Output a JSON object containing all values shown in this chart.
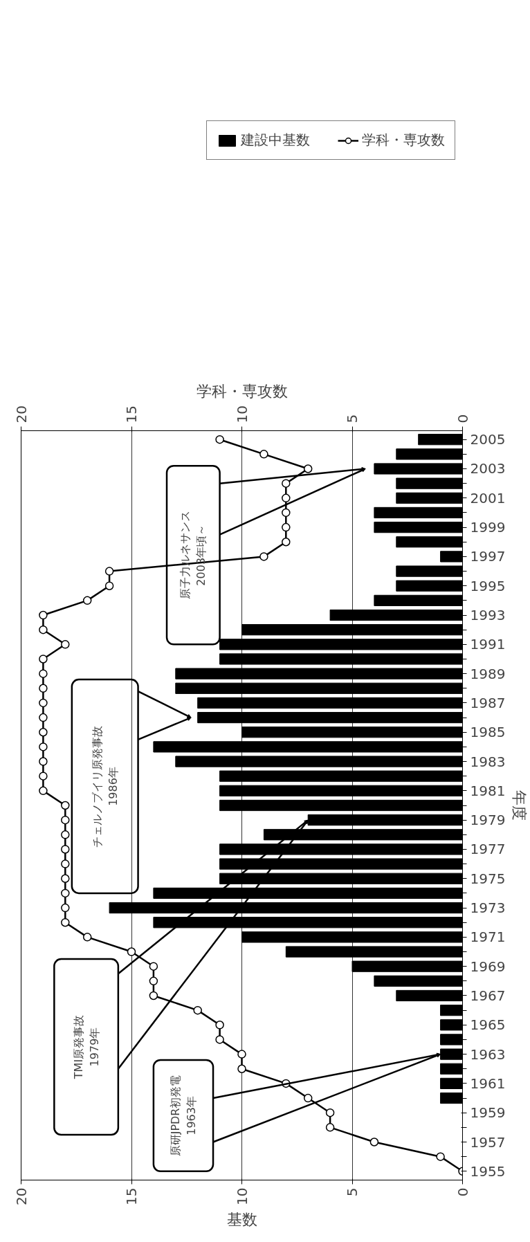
{
  "chart_data": {
    "type": "bar",
    "orientation": "horizontal",
    "categories": [
      "2005",
      null,
      "2003",
      null,
      "2001",
      null,
      "1999",
      null,
      "1997",
      null,
      "1995",
      null,
      "1993",
      null,
      "1991",
      null,
      "1989",
      null,
      "1987",
      null,
      "1985",
      null,
      "1983",
      null,
      "1981",
      null,
      "1979",
      null,
      "1977",
      null,
      "1975",
      null,
      "1973",
      null,
      "1971",
      null,
      "1969",
      null,
      "1967",
      null,
      "1965",
      null,
      "1963",
      null,
      "1961",
      null,
      "1959",
      null,
      "1957",
      null,
      "1955"
    ],
    "series": [
      {
        "name": "建設中基数",
        "color": "#000000",
        "values": [
          2,
          3,
          4,
          3,
          3,
          4,
          4,
          3,
          1,
          3,
          3,
          4,
          6,
          10,
          11,
          11,
          13,
          13,
          12,
          12,
          10,
          14,
          13,
          11,
          11,
          11,
          7,
          9,
          11,
          11,
          11,
          14,
          16,
          14,
          10,
          8,
          5,
          4,
          3,
          1,
          1,
          1,
          1,
          1,
          1,
          1,
          0,
          0,
          0,
          0,
          0
        ]
      },
      {
        "name": "学科・専攻数",
        "color": "#000000",
        "type": "line",
        "marker": "circle",
        "values": [
          11,
          9,
          7,
          8,
          8,
          8,
          8,
          8,
          9,
          16,
          16,
          17,
          19,
          19,
          18,
          19,
          19,
          19,
          19,
          19,
          19,
          19,
          19,
          19,
          19,
          18,
          18,
          18,
          18,
          18,
          18,
          18,
          18,
          18,
          17,
          15,
          14,
          14,
          14,
          12,
          11,
          11,
          10,
          10,
          8,
          7,
          6,
          6,
          4,
          1,
          0
        ]
      }
    ],
    "xlim": [
      20,
      0
    ],
    "xticks": [
      20,
      15,
      10,
      5,
      0
    ],
    "x2lim": [
      20,
      0
    ],
    "x2ticks": [
      20,
      15,
      10,
      5,
      0
    ],
    "xlabel": "基数",
    "x2label": "学科・専攻数",
    "ylabel": "年度",
    "grid": "x",
    "legend": "top",
    "annotations": [
      "原研JPDR初発電\n1963年",
      "TMI原発事故\n1979年",
      "チェルノブイリ原発事故\n1986年",
      "原子力ルネサンス\n2003年頃～"
    ]
  }
}
